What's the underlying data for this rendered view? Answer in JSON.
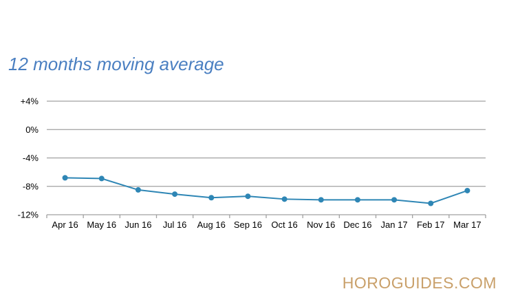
{
  "chart_data": {
    "type": "line",
    "title": "12 months moving average",
    "xlabel": "",
    "ylabel": "",
    "categories": [
      "Apr 16",
      "May 16",
      "Jun 16",
      "Jul 16",
      "Aug 16",
      "Sep 16",
      "Oct 16",
      "Nov 16",
      "Dec 16",
      "Jan 17",
      "Feb 17",
      "Mar 17"
    ],
    "series": [
      {
        "values": [
          -6.8,
          -6.9,
          -8.5,
          -9.1,
          -9.6,
          -9.4,
          -9.8,
          -9.9,
          -9.9,
          -9.9,
          -10.4,
          -8.6
        ]
      }
    ],
    "ylim": [
      -12,
      4
    ],
    "yticks": [
      4,
      0,
      -4,
      -8,
      -12
    ],
    "ytick_labels": [
      "+4%",
      "0%",
      "-4%",
      "-8%",
      "-12%"
    ],
    "grid": true,
    "legend": "none",
    "line_color": "#2e86b5",
    "grid_color": "#a0a0a0"
  },
  "watermark": "HOROGUIDES.COM",
  "colors": {
    "title": "#4a7fc1",
    "watermark": "#c9a06a"
  }
}
